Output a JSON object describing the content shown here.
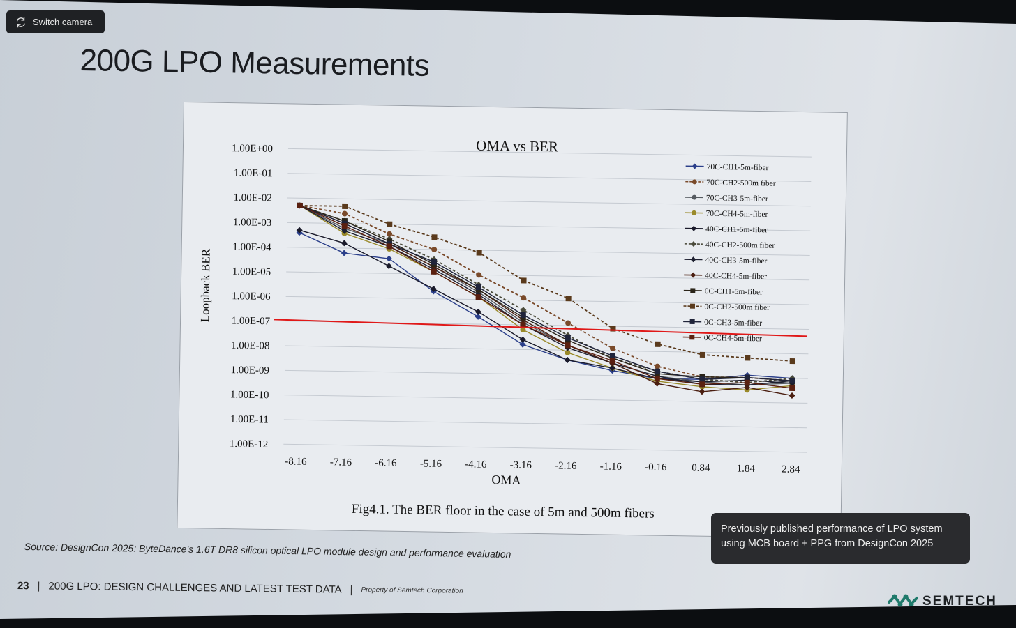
{
  "camera": {
    "switch_label": "Switch camera"
  },
  "slide": {
    "title": "200G LPO Measurements",
    "source": "Source: DesignCon 2025: ByteDance's 1.6T DR8 silicon optical LPO module design and performance evaluation",
    "footer": {
      "page": "23",
      "section": "200G LPO: DESIGN CHALLENGES AND LATEST TEST DATA",
      "property": "Property of Semtech Corporation"
    },
    "note": "Previously published performance of LPO system using MCB board + PPG from DesignCon 2025",
    "logo_text": "SEMTECH",
    "colors": {
      "threshold": "#e01818",
      "logo": "#1f7a6b"
    }
  },
  "chart_data": {
    "type": "line",
    "title": "OMA vs BER",
    "xlabel": "OMA",
    "ylabel": "Loopback BER",
    "caption": "Fig4.1. The BER floor in the case of 5m and 500m fibers",
    "categories": [
      "-8.16",
      "-7.16",
      "-6.16",
      "-5.16",
      "-4.16",
      "-3.16",
      "-2.16",
      "-1.16",
      "-0.16",
      "0.84",
      "1.84",
      "2.84"
    ],
    "y_ticks": [
      "1.00E+00",
      "1.00E-01",
      "1.00E-02",
      "1.00E-03",
      "1.00E-04",
      "1.00E-05",
      "1.00E-06",
      "1.00E-07",
      "1.00E-08",
      "1.00E-09",
      "1.00E-10",
      "1.00E-11",
      "1.00E-12"
    ],
    "y_scale": "log",
    "ylim_exp": [
      -12,
      0
    ],
    "threshold": {
      "value": 1e-07,
      "color": "#e01818"
    },
    "series": [
      {
        "name": "70C-CH1-5m-fiber",
        "color": "#2b3f8a",
        "dash": false,
        "marker": "diamond",
        "values_exp": [
          -3.4,
          -4.2,
          -4.4,
          -5.7,
          -6.7,
          -7.8,
          -8.4,
          -8.8,
          -9.1,
          -9.1,
          -8.9,
          -9.0
        ]
      },
      {
        "name": "70C-CH2-500m fiber",
        "color": "#7a4a2a",
        "dash": true,
        "marker": "circle",
        "values_exp": [
          -2.3,
          -2.6,
          -3.4,
          -4.0,
          -5.0,
          -5.9,
          -6.9,
          -7.9,
          -8.6,
          -9.0,
          -9.0,
          -9.1
        ]
      },
      {
        "name": "70C-CH3-5m-fiber",
        "color": "#555a60",
        "dash": false,
        "marker": "circle",
        "values_exp": [
          -2.3,
          -3.2,
          -3.8,
          -4.7,
          -5.7,
          -6.9,
          -7.8,
          -8.5,
          -9.0,
          -9.2,
          -9.3,
          -9.2
        ]
      },
      {
        "name": "70C-CH4-5m-fiber",
        "color": "#9a8a2a",
        "dash": false,
        "marker": "circle",
        "values_exp": [
          -2.3,
          -3.4,
          -4.0,
          -4.9,
          -5.9,
          -7.2,
          -8.1,
          -8.7,
          -9.2,
          -9.4,
          -9.5,
          -9.3
        ]
      },
      {
        "name": "40C-CH1-5m-fiber",
        "color": "#1a1a2a",
        "dash": false,
        "marker": "diamond",
        "values_exp": [
          -3.3,
          -3.8,
          -4.7,
          -5.6,
          -6.5,
          -7.6,
          -8.4,
          -8.7,
          -9.1,
          -9.2,
          -9.1,
          -9.2
        ]
      },
      {
        "name": "40C-CH2-500m fiber",
        "color": "#4a4a3a",
        "dash": true,
        "marker": "diamond",
        "values_exp": [
          -2.3,
          -2.9,
          -3.6,
          -4.4,
          -5.4,
          -6.4,
          -7.4,
          -8.3,
          -8.8,
          -9.1,
          -9.2,
          -9.0
        ]
      },
      {
        "name": "40C-CH3-5m-fiber",
        "color": "#1e2030",
        "dash": false,
        "marker": "diamond",
        "values_exp": [
          -2.3,
          -3.3,
          -3.9,
          -4.8,
          -5.8,
          -7.0,
          -7.9,
          -8.5,
          -9.0,
          -9.3,
          -9.3,
          -9.1
        ]
      },
      {
        "name": "40C-CH4-5m-fiber",
        "color": "#4a1e10",
        "dash": false,
        "marker": "diamond",
        "values_exp": [
          -2.3,
          -3.0,
          -3.8,
          -4.7,
          -5.6,
          -6.8,
          -7.8,
          -8.5,
          -9.3,
          -9.6,
          -9.4,
          -9.7
        ]
      },
      {
        "name": "0C-CH1-5m-fiber",
        "color": "#2a2418",
        "dash": false,
        "marker": "square",
        "values_exp": [
          -2.3,
          -2.9,
          -3.7,
          -4.6,
          -5.6,
          -6.7,
          -7.6,
          -8.3,
          -8.9,
          -9.0,
          -9.0,
          -9.1
        ]
      },
      {
        "name": "0C-CH2-500m fiber",
        "color": "#5a3a1c",
        "dash": true,
        "marker": "square",
        "values_exp": [
          -2.3,
          -2.3,
          -3.0,
          -3.5,
          -4.1,
          -5.2,
          -5.9,
          -7.1,
          -7.7,
          -8.1,
          -8.2,
          -8.3
        ]
      },
      {
        "name": "0C-CH3-5m-fiber",
        "color": "#20243a",
        "dash": false,
        "marker": "square",
        "values_exp": [
          -2.3,
          -3.0,
          -3.8,
          -4.5,
          -5.5,
          -6.6,
          -7.5,
          -8.2,
          -8.8,
          -9.1,
          -9.0,
          -9.1
        ]
      },
      {
        "name": "0C-CH4-5m-fiber",
        "color": "#5a2010",
        "dash": false,
        "marker": "square",
        "values_exp": [
          -2.3,
          -3.1,
          -3.9,
          -4.9,
          -5.9,
          -7.0,
          -7.8,
          -8.4,
          -9.1,
          -9.3,
          -9.2,
          -9.4
        ]
      }
    ]
  }
}
